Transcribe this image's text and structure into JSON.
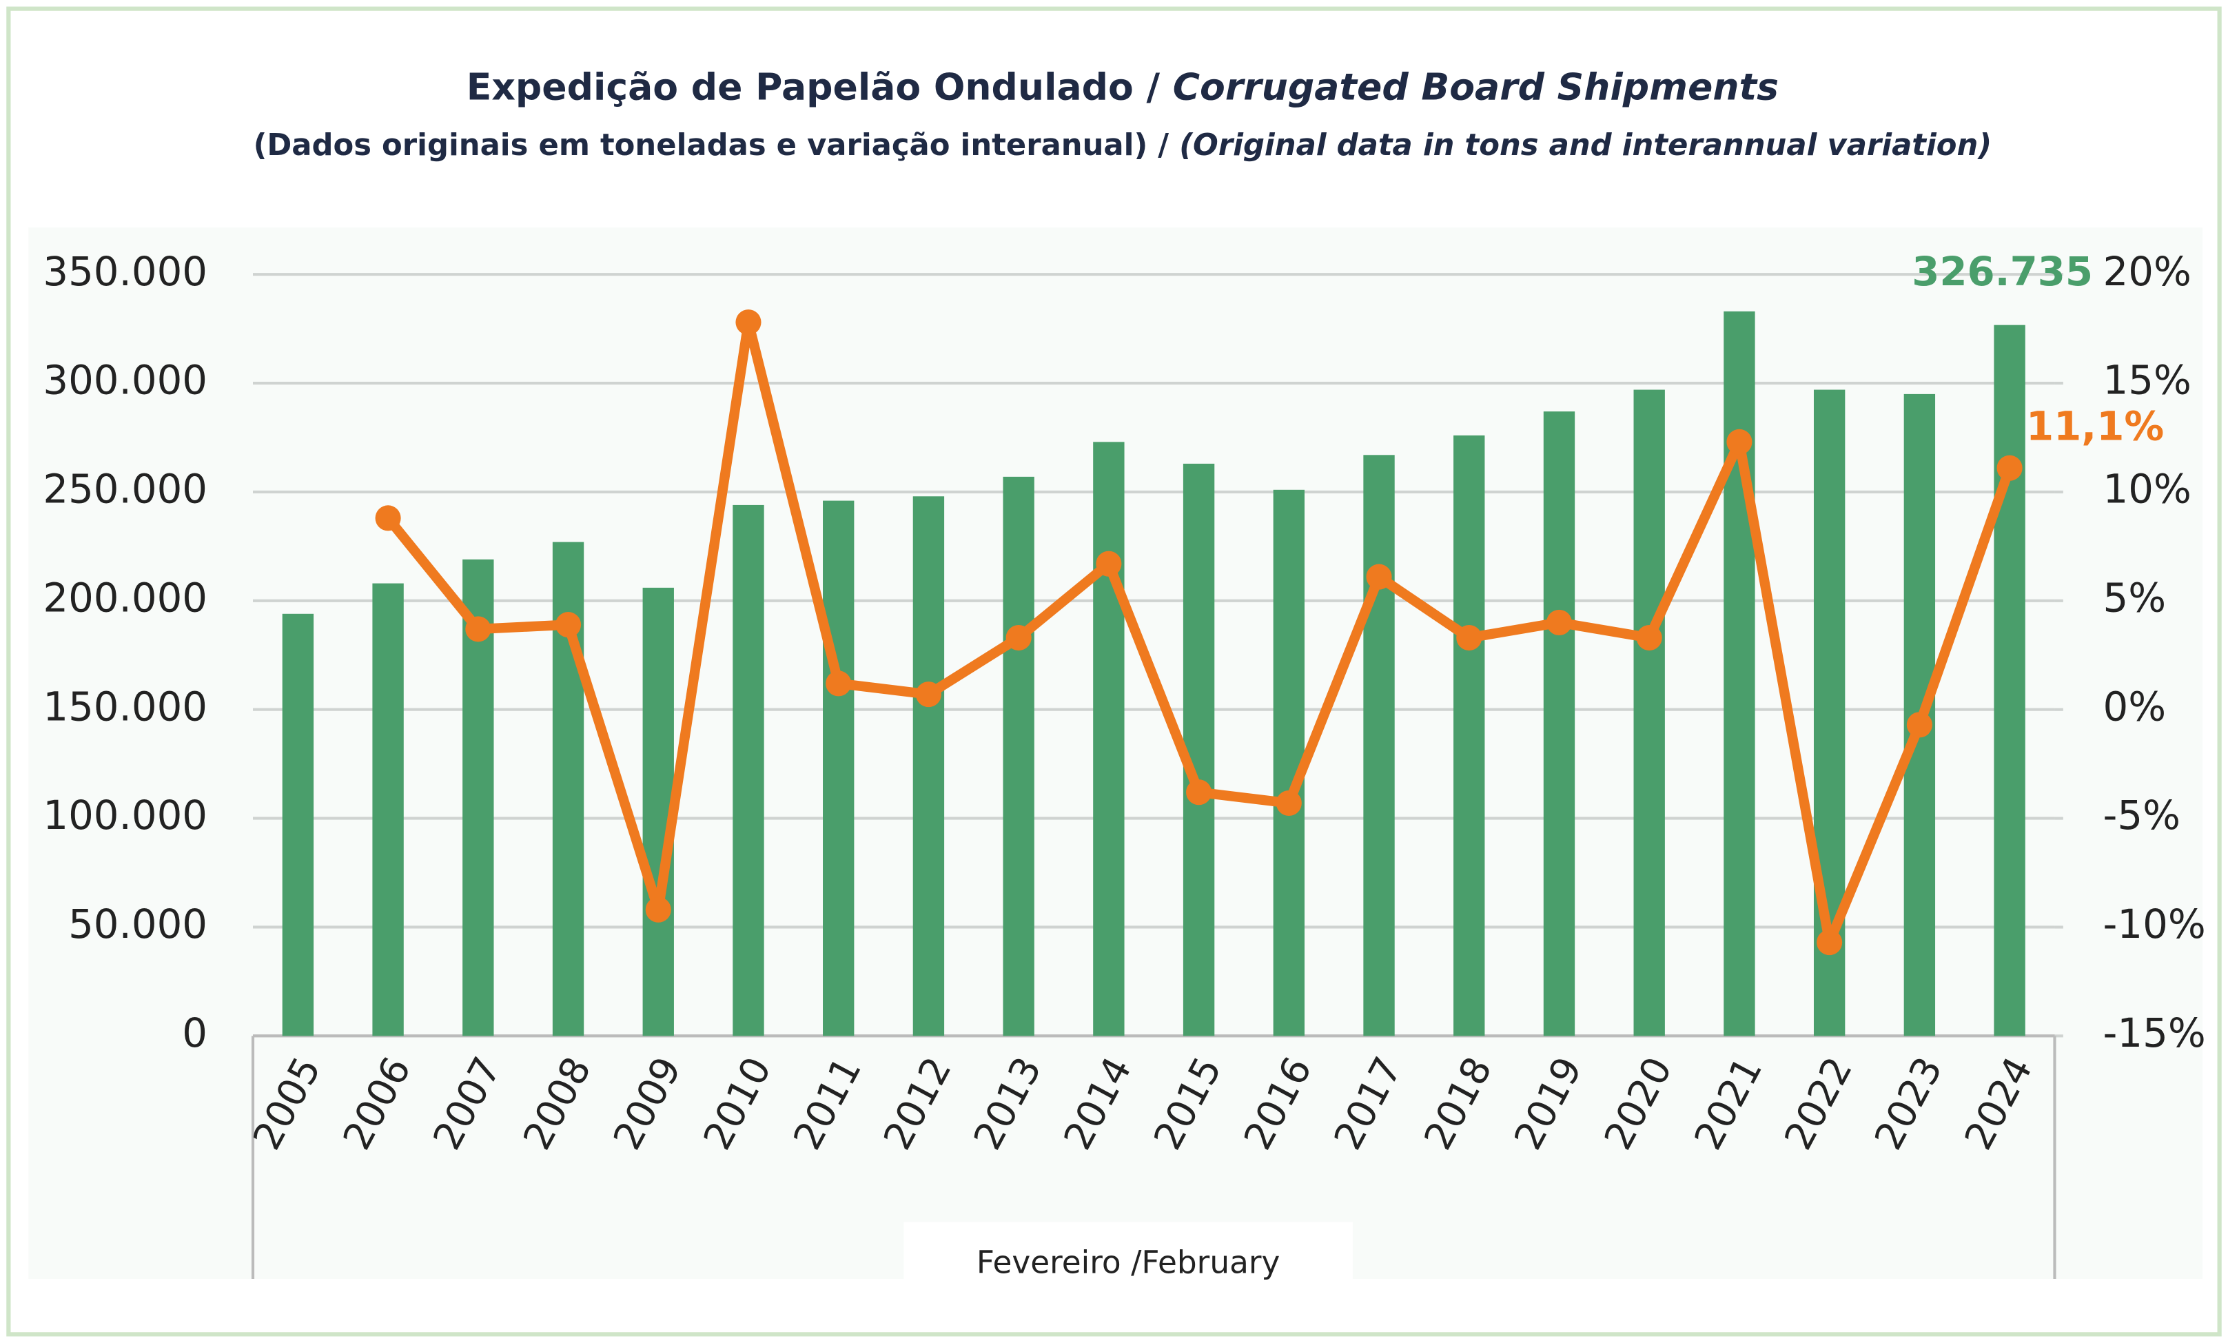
{
  "chart_data": {
    "type": "bar_line",
    "title": [
      "Expedição de Papelão Ondulado / ",
      "Corrugated Board Shipments"
    ],
    "subtitle": [
      "(Dados originais em toneladas e variação interanual) / ",
      "(Original data in tons and interannual variation)"
    ],
    "x_label": "Fevereiro /February",
    "categories": [
      "2005",
      "2006",
      "2007",
      "2008",
      "2009",
      "2010",
      "2011",
      "2012",
      "2013",
      "2014",
      "2015",
      "2016",
      "2017",
      "2018",
      "2019",
      "2020",
      "2021",
      "2022",
      "2023",
      "2024"
    ],
    "series": [
      {
        "name": "Expedição",
        "color": "#4a9e6b",
        "type": "bar",
        "values": [
          194000,
          208000,
          219000,
          227000,
          206000,
          244000,
          246000,
          248000,
          257000,
          273000,
          263000,
          251000,
          267000,
          276000,
          287000,
          297000,
          333000,
          297000,
          295000,
          326735
        ],
        "value_labels": [
          null,
          null,
          null,
          null,
          null,
          null,
          null,
          null,
          null,
          null,
          null,
          null,
          null,
          null,
          null,
          null,
          null,
          null,
          null,
          "326.735"
        ]
      },
      {
        "name": "Variação",
        "color": "#ef7a1f",
        "type": "line",
        "axis": "y2",
        "values": [
          null,
          8.8,
          3.7,
          3.9,
          -9.2,
          17.8,
          1.2,
          0.7,
          3.3,
          6.7,
          -3.8,
          -4.3,
          6.1,
          3.3,
          4.0,
          3.3,
          12.3,
          -10.7,
          -0.7,
          11.1
        ],
        "value_labels": [
          null,
          null,
          null,
          null,
          null,
          null,
          null,
          null,
          null,
          null,
          null,
          null,
          null,
          null,
          null,
          null,
          null,
          null,
          null,
          "11,1%"
        ]
      }
    ],
    "ylim": [
      0,
      350000
    ],
    "yticks": [
      0,
      {
        "value": 50000,
        "label": "50.000"
      },
      {
        "value": 100000,
        "label": "100.000"
      },
      {
        "value": 150000,
        "label": "150.000"
      },
      {
        "value": 200000,
        "label": "200.000"
      },
      {
        "value": 250000,
        "label": "250.000"
      },
      {
        "value": 300000,
        "label": "300.000"
      },
      {
        "value": 350000,
        "label": "350.000"
      }
    ],
    "y2lim": [
      -15,
      20
    ],
    "y2ticks": [
      {
        "value": -15,
        "label": "-15%"
      },
      {
        "value": -10,
        "label": "-10%"
      },
      {
        "value": -5,
        "label": "-5%"
      },
      {
        "value": 0,
        "label": "0%"
      },
      {
        "value": 5,
        "label": "5%"
      },
      {
        "value": 10,
        "label": "10%"
      },
      {
        "value": 15,
        "label": "15%"
      },
      {
        "value": 20,
        "label": "20%"
      }
    ],
    "grid": true
  }
}
